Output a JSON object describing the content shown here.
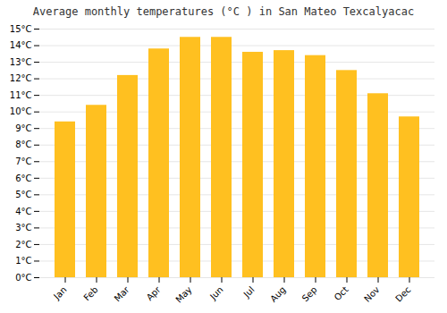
{
  "chart_data": {
    "type": "bar",
    "title": "Average monthly temperatures (°C ) in San Mateo Texcalyacac",
    "categories": [
      "Jan",
      "Feb",
      "Mar",
      "Apr",
      "May",
      "Jun",
      "Jul",
      "Aug",
      "Sep",
      "Oct",
      "Nov",
      "Dec"
    ],
    "values": [
      9.4,
      10.4,
      12.2,
      13.8,
      14.5,
      14.5,
      13.6,
      13.7,
      13.4,
      12.5,
      11.1,
      9.7
    ],
    "color": "#FFC020",
    "ylim": [
      0,
      15
    ],
    "yticks": [
      {
        "value": 0,
        "label": "0°C"
      },
      {
        "value": 1,
        "label": "1°C"
      },
      {
        "value": 2,
        "label": "2°C"
      },
      {
        "value": 3,
        "label": "3°C"
      },
      {
        "value": 4,
        "label": "4°C"
      },
      {
        "value": 5,
        "label": "5°C"
      },
      {
        "value": 6,
        "label": "6°C"
      },
      {
        "value": 7,
        "label": "7°C"
      },
      {
        "value": 8,
        "label": "8°C"
      },
      {
        "value": 9,
        "label": "9°C"
      },
      {
        "value": 10,
        "label": "10°C"
      },
      {
        "value": 11,
        "label": "11°C"
      },
      {
        "value": 12,
        "label": "12°C"
      },
      {
        "value": 13,
        "label": "13°C"
      },
      {
        "value": 14,
        "label": "14°C"
      },
      {
        "value": 15,
        "label": "15°C"
      }
    ],
    "grid": true
  }
}
